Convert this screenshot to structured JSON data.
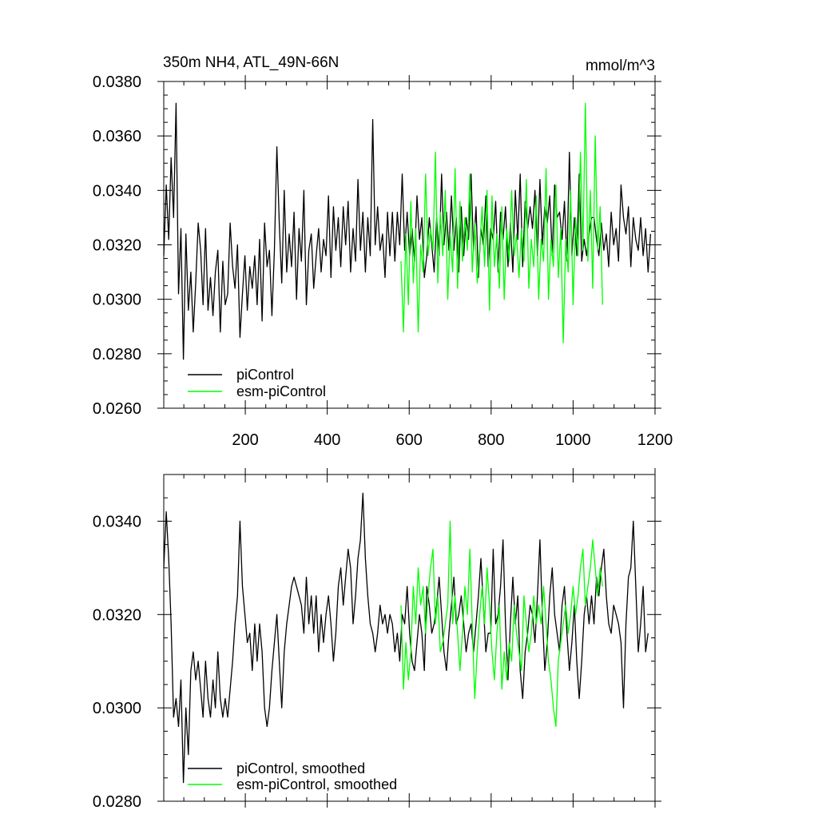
{
  "chart_data": [
    {
      "type": "line",
      "title": "350m NH4, ATL_49N-66N",
      "units": "mmol/m^3",
      "xlabel": "",
      "ylabel": "",
      "xlim": [
        1,
        1200
      ],
      "ylim": [
        0.026,
        0.038
      ],
      "x_ticks": [
        200,
        400,
        600,
        800,
        1000,
        1200
      ],
      "x_tick_labels": [
        "200",
        "400",
        "600",
        "800",
        "1000",
        "1200"
      ],
      "y_ticks": [
        0.026,
        0.028,
        0.03,
        0.032,
        0.034,
        0.036,
        0.038
      ],
      "y_tick_labels": [
        "0.0260",
        "0.0280",
        "0.0300",
        "0.0320",
        "0.0340",
        "0.0360",
        "0.0380"
      ],
      "grid": false,
      "legend_position": "bottom-left",
      "series": [
        {
          "name": "piControl",
          "color": "#000000",
          "x_start": 1,
          "x_step": 6,
          "values": [
            0.0316,
            0.0342,
            0.0322,
            0.0352,
            0.033,
            0.0372,
            0.0302,
            0.0326,
            0.0278,
            0.0324,
            0.0296,
            0.031,
            0.0288,
            0.0306,
            0.0328,
            0.0318,
            0.0298,
            0.0326,
            0.0296,
            0.0308,
            0.0294,
            0.031,
            0.0318,
            0.0288,
            0.0314,
            0.0298,
            0.0302,
            0.0328,
            0.0312,
            0.0304,
            0.032,
            0.0286,
            0.0302,
            0.0316,
            0.0296,
            0.0312,
            0.0304,
            0.0316,
            0.0298,
            0.0322,
            0.0292,
            0.0328,
            0.0312,
            0.0318,
            0.0294,
            0.0318,
            0.0356,
            0.0328,
            0.0306,
            0.034,
            0.031,
            0.0324,
            0.0312,
            0.0332,
            0.03,
            0.0326,
            0.0314,
            0.034,
            0.0298,
            0.0318,
            0.0324,
            0.0304,
            0.0316,
            0.0326,
            0.031,
            0.0322,
            0.0316,
            0.0338,
            0.0308,
            0.0334,
            0.0318,
            0.033,
            0.0312,
            0.0334,
            0.032,
            0.0336,
            0.031,
            0.0326,
            0.0314,
            0.0344,
            0.0318,
            0.0332,
            0.031,
            0.033,
            0.0316,
            0.0366,
            0.032,
            0.0334,
            0.0318,
            0.0324,
            0.0308,
            0.0332,
            0.0316,
            0.0332,
            0.0314,
            0.0332,
            0.032,
            0.0346,
            0.0318,
            0.0332,
            0.0316,
            0.0326,
            0.0314,
            0.0338,
            0.0322,
            0.033,
            0.0308,
            0.0316,
            0.033,
            0.032,
            0.031,
            0.033,
            0.0316,
            0.0346,
            0.032,
            0.0332,
            0.0318,
            0.0338,
            0.0318,
            0.033,
            0.031,
            0.0334,
            0.0316,
            0.033,
            0.0322,
            0.0346,
            0.0318,
            0.0334,
            0.0308,
            0.0326,
            0.032,
            0.0338,
            0.0312,
            0.0326,
            0.0322,
            0.0336,
            0.031,
            0.0332,
            0.0322,
            0.0334,
            0.0312,
            0.0328,
            0.031,
            0.034,
            0.0322,
            0.0346,
            0.0312,
            0.0336,
            0.0326,
            0.0334,
            0.0326,
            0.034,
            0.0316,
            0.0344,
            0.032,
            0.0334,
            0.0328,
            0.0338,
            0.0316,
            0.0342,
            0.033,
            0.0332,
            0.0322,
            0.0336,
            0.0314,
            0.0354,
            0.0316,
            0.033,
            0.0316,
            0.0346,
            0.0314,
            0.0322,
            0.0316,
            0.0324,
            0.033,
            0.033,
            0.0322,
            0.0316,
            0.0328,
            0.0318,
            0.0324,
            0.0312,
            0.0332,
            0.032,
            0.0326,
            0.0314,
            0.0342,
            0.033,
            0.0324,
            0.0334,
            0.0312,
            0.033,
            0.0322,
            0.0318,
            0.033,
            0.0316,
            0.0326,
            0.031,
            0.0324
          ]
        },
        {
          "name": "esm-piControl",
          "color": "#00ff00",
          "x_start": 580,
          "x_step": 6,
          "values": [
            0.0314,
            0.0288,
            0.0324,
            0.0298,
            0.0336,
            0.0306,
            0.0326,
            0.0288,
            0.032,
            0.031,
            0.0346,
            0.0316,
            0.0326,
            0.0318,
            0.0354,
            0.0306,
            0.0332,
            0.0316,
            0.034,
            0.03,
            0.0324,
            0.031,
            0.0348,
            0.0304,
            0.0336,
            0.0314,
            0.033,
            0.0318,
            0.0346,
            0.031,
            0.0328,
            0.0306,
            0.0318,
            0.0334,
            0.0312,
            0.034,
            0.0296,
            0.0338,
            0.0312,
            0.0324,
            0.0304,
            0.0334,
            0.03,
            0.0326,
            0.0314,
            0.034,
            0.0316,
            0.0324,
            0.0308,
            0.0326,
            0.0314,
            0.0344,
            0.0304,
            0.0322,
            0.0312,
            0.0338,
            0.03,
            0.0322,
            0.0314,
            0.0348,
            0.03,
            0.0322,
            0.0312,
            0.0342,
            0.0308,
            0.0326,
            0.0284,
            0.0322,
            0.031,
            0.034,
            0.0298,
            0.033,
            0.0316,
            0.0354,
            0.0318,
            0.0372,
            0.0314,
            0.034,
            0.0304,
            0.036,
            0.0318,
            0.0334,
            0.0298
          ]
        }
      ]
    },
    {
      "type": "line",
      "title": "",
      "xlabel": "",
      "ylabel": "",
      "xlim": [
        1,
        1200
      ],
      "ylim": [
        0.028,
        0.035
      ],
      "x_ticks": [
        200,
        400,
        600,
        800,
        1000,
        1200
      ],
      "y_ticks": [
        0.028,
        0.03,
        0.032,
        0.034
      ],
      "y_tick_labels": [
        "0.0280",
        "0.0300",
        "0.0320",
        "0.0340"
      ],
      "grid": false,
      "legend_position": "bottom-left",
      "series": [
        {
          "name": "piControl, smoothed",
          "color": "#000000",
          "x_start": 1,
          "x_step": 6,
          "values": [
            0.033,
            0.0342,
            0.0332,
            0.0318,
            0.0298,
            0.0302,
            0.0296,
            0.0306,
            0.0284,
            0.03,
            0.029,
            0.0308,
            0.0312,
            0.0306,
            0.031,
            0.0304,
            0.0298,
            0.031,
            0.0302,
            0.0298,
            0.0306,
            0.03,
            0.0312,
            0.0302,
            0.0298,
            0.0302,
            0.0298,
            0.0304,
            0.031,
            0.0318,
            0.0324,
            0.034,
            0.0326,
            0.032,
            0.0314,
            0.0316,
            0.0308,
            0.0318,
            0.031,
            0.0318,
            0.0312,
            0.03,
            0.0296,
            0.03,
            0.0308,
            0.0314,
            0.032,
            0.031,
            0.03,
            0.0312,
            0.0318,
            0.0322,
            0.0326,
            0.0328,
            0.0326,
            0.0324,
            0.0322,
            0.0316,
            0.0328,
            0.0318,
            0.0324,
            0.0316,
            0.0324,
            0.0312,
            0.032,
            0.0314,
            0.032,
            0.0324,
            0.0318,
            0.031,
            0.0316,
            0.0326,
            0.033,
            0.0322,
            0.0328,
            0.0334,
            0.033,
            0.0318,
            0.0324,
            0.0332,
            0.0336,
            0.0346,
            0.0332,
            0.0324,
            0.0318,
            0.0316,
            0.0312,
            0.0316,
            0.0322,
            0.0318,
            0.032,
            0.0316,
            0.032,
            0.0318,
            0.0312,
            0.0316,
            0.031,
            0.032,
            0.0318,
            0.0326,
            0.0316,
            0.031,
            0.0308,
            0.0314,
            0.032,
            0.0316,
            0.0308,
            0.0326,
            0.0322,
            0.0316,
            0.0318,
            0.0322,
            0.0328,
            0.032,
            0.0312,
            0.0308,
            0.0316,
            0.0322,
            0.0328,
            0.0318,
            0.032,
            0.0324,
            0.0318,
            0.0312,
            0.0316,
            0.0318,
            0.0312,
            0.0318,
            0.0324,
            0.0332,
            0.0322,
            0.0312,
            0.0316,
            0.0316,
            0.0334,
            0.0318,
            0.032,
            0.0326,
            0.0336,
            0.0318,
            0.0306,
            0.0318,
            0.0328,
            0.0318,
            0.0324,
            0.0308,
            0.0302,
            0.0312,
            0.0316,
            0.0322,
            0.032,
            0.0314,
            0.0324,
            0.0336,
            0.032,
            0.0308,
            0.0314,
            0.0324,
            0.033,
            0.032,
            0.0316,
            0.0312,
            0.0322,
            0.0326,
            0.0316,
            0.0308,
            0.0314,
            0.0322,
            0.031,
            0.0302,
            0.031,
            0.032,
            0.0324,
            0.0318,
            0.0324,
            0.0318,
            0.0328,
            0.0324,
            0.033,
            0.0334,
            0.0324,
            0.0318,
            0.0316,
            0.0322,
            0.032,
            0.0318,
            0.0314,
            0.03,
            0.0318,
            0.0328,
            0.033,
            0.034,
            0.0326,
            0.0312,
            0.0318,
            0.0326,
            0.0312,
            0.0316
          ]
        },
        {
          "name": "esm-piControl, smoothed",
          "color": "#00ff00",
          "x_start": 580,
          "x_step": 6,
          "values": [
            0.0322,
            0.0304,
            0.0314,
            0.0306,
            0.0312,
            0.0326,
            0.0318,
            0.033,
            0.0322,
            0.0326,
            0.0316,
            0.0324,
            0.033,
            0.0334,
            0.0318,
            0.0324,
            0.0312,
            0.0314,
            0.0318,
            0.0322,
            0.034,
            0.0318,
            0.0324,
            0.0316,
            0.0308,
            0.0316,
            0.0326,
            0.032,
            0.0334,
            0.0318,
            0.0302,
            0.0312,
            0.032,
            0.0326,
            0.0318,
            0.033,
            0.0322,
            0.0312,
            0.0306,
            0.0316,
            0.0322,
            0.0304,
            0.0312,
            0.0306,
            0.0314,
            0.031,
            0.0322,
            0.0316,
            0.0312,
            0.0308,
            0.0324,
            0.0318,
            0.0312,
            0.0316,
            0.0324,
            0.0318,
            0.0322,
            0.0318,
            0.0326,
            0.0318,
            0.031,
            0.0306,
            0.03,
            0.0296,
            0.031,
            0.0314,
            0.0318,
            0.0322,
            0.0316,
            0.032,
            0.0326,
            0.032,
            0.0324,
            0.033,
            0.0334,
            0.0322,
            0.0326,
            0.033,
            0.0336,
            0.033,
            0.0324,
            0.033,
            0.0326
          ]
        }
      ]
    }
  ]
}
